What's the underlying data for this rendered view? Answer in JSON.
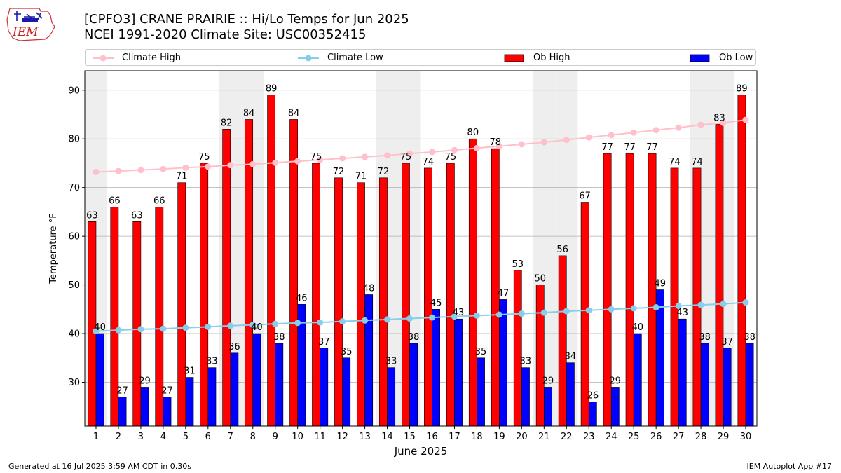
{
  "header": {
    "title_line1": "[CPFO3] CRANE PRAIRIE :: Hi/Lo Temps for Jun 2025",
    "title_line2": "NCEI 1991-2020 Climate Site: USC00352415",
    "logo_text": "IEM"
  },
  "legend": {
    "climate_high": "Climate High",
    "climate_low": "Climate Low",
    "ob_high": "Ob High",
    "ob_low": "Ob Low"
  },
  "footer": {
    "generated": "Generated at 16 Jul 2025 3:59 AM CDT in 0.30s",
    "app": "IEM Autoplot App #17"
  },
  "colors": {
    "ob_high": "#ff0000",
    "ob_low": "#0000ff",
    "climate_high": "#ffc0cb",
    "climate_low": "#87ceeb",
    "weekend_shade": "#eeeeee",
    "grid": "#b0b0b0"
  },
  "chart_data": {
    "type": "bar",
    "xlabel": "June 2025",
    "ylabel": "Temperature °F",
    "ylim": [
      21,
      94
    ],
    "yticks": [
      30,
      40,
      50,
      60,
      70,
      80,
      90
    ],
    "grid": true,
    "legend_position": "top",
    "categories": [
      "1",
      "2",
      "3",
      "4",
      "5",
      "6",
      "7",
      "8",
      "9",
      "10",
      "11",
      "12",
      "13",
      "14",
      "15",
      "16",
      "17",
      "18",
      "19",
      "20",
      "21",
      "22",
      "23",
      "24",
      "25",
      "26",
      "27",
      "28",
      "29",
      "30"
    ],
    "shaded_days": [
      1,
      7,
      8,
      14,
      15,
      21,
      22,
      28,
      29
    ],
    "series": [
      {
        "name": "Ob High",
        "kind": "bar",
        "values": [
          63,
          66,
          63,
          66,
          71,
          75,
          82,
          84,
          89,
          84,
          75,
          72,
          71,
          72,
          75,
          74,
          75,
          80,
          78,
          53,
          50,
          56,
          67,
          77,
          77,
          77,
          74,
          74,
          83,
          89
        ]
      },
      {
        "name": "Ob Low",
        "kind": "bar",
        "values": [
          40,
          27,
          29,
          27,
          31,
          33,
          36,
          40,
          38,
          46,
          37,
          35,
          48,
          33,
          38,
          45,
          43,
          35,
          47,
          33,
          29,
          34,
          26,
          29,
          40,
          49,
          43,
          38,
          37,
          38
        ]
      },
      {
        "name": "Climate High",
        "kind": "line",
        "values": [
          73.2,
          73.4,
          73.6,
          73.8,
          74.1,
          74.3,
          74.6,
          74.8,
          75.1,
          75.4,
          75.7,
          76.0,
          76.3,
          76.6,
          77.0,
          77.3,
          77.7,
          78.1,
          78.5,
          78.9,
          79.3,
          79.8,
          80.3,
          80.8,
          81.3,
          81.8,
          82.3,
          82.9,
          83.3,
          83.9
        ]
      },
      {
        "name": "Climate Low",
        "kind": "line",
        "values": [
          40.5,
          40.7,
          40.9,
          41.0,
          41.2,
          41.4,
          41.6,
          41.8,
          42.0,
          42.2,
          42.3,
          42.5,
          42.7,
          42.9,
          43.1,
          43.3,
          43.5,
          43.7,
          43.9,
          44.1,
          44.3,
          44.6,
          44.8,
          45.0,
          45.2,
          45.4,
          45.7,
          45.9,
          46.1,
          46.4
        ]
      }
    ]
  }
}
